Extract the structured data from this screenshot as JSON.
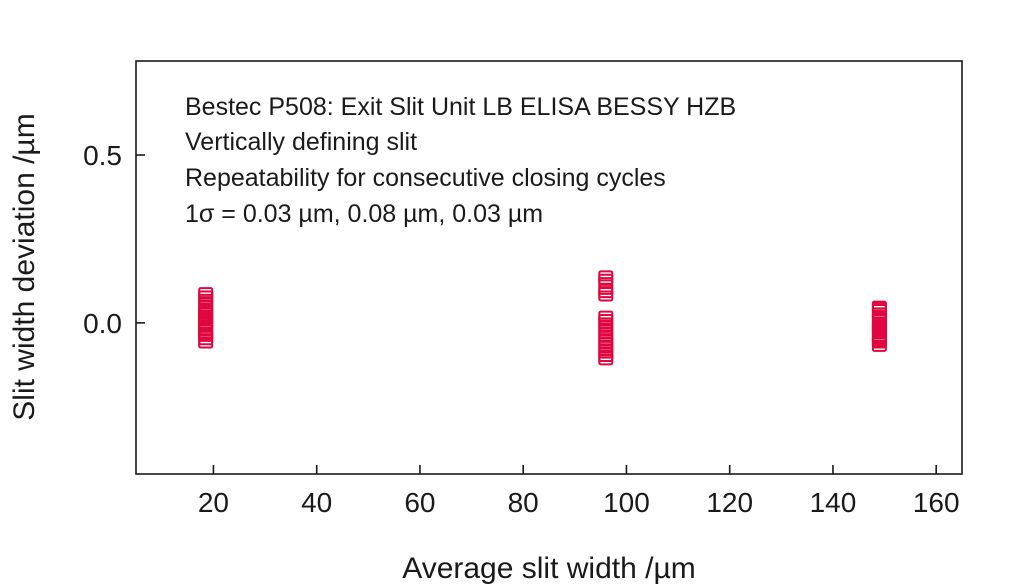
{
  "chart_data": {
    "type": "scatter",
    "title": "",
    "xlabel": "Average slit width /µm",
    "ylabel": "Slit width deviation /µm",
    "xlim": [
      5,
      165
    ],
    "ylim": [
      -0.45,
      0.78
    ],
    "xticks": [
      20,
      40,
      60,
      80,
      100,
      120,
      140,
      160
    ],
    "yticks": [
      0.0,
      0.5
    ],
    "ytick_labels": [
      "0.0",
      "0.5"
    ],
    "grid": false,
    "marker": "square",
    "marker_color": "#e0063f",
    "annotations": [
      "Bestec P508: Exit Slit Unit LB ELISA BESSY HZB",
      "Vertically defining slit",
      "Repeatability for consecutive closing cycles",
      "1σ = 0.03 µm, 0.08 µm, 0.03 µm"
    ],
    "series": [
      {
        "x": [
          18.5,
          18.5,
          18.5,
          18.5,
          18.5,
          18.5,
          18.5,
          18.5,
          18.5,
          18.5,
          18.5,
          18.5,
          18.5,
          18.5,
          18.5,
          18.5,
          18.5,
          18.5,
          18.5,
          18.5
        ],
        "y": [
          0.09,
          0.08,
          0.07,
          0.06,
          0.05,
          0.04,
          0.035,
          0.03,
          0.02,
          0.015,
          0.01,
          0.0,
          -0.005,
          -0.01,
          -0.02,
          -0.03,
          -0.035,
          -0.04,
          -0.05,
          -0.06
        ]
      },
      {
        "x": [
          96,
          96,
          96,
          96,
          96,
          96,
          96,
          96,
          96,
          96,
          96,
          96,
          96,
          96,
          96,
          96,
          96,
          96,
          96,
          96
        ],
        "y": [
          0.14,
          0.13,
          0.12,
          0.1,
          0.09,
          0.08,
          0.02,
          0.01,
          0.0,
          -0.01,
          -0.02,
          -0.03,
          -0.04,
          -0.05,
          -0.06,
          -0.07,
          -0.08,
          -0.09,
          -0.1,
          -0.11
        ]
      },
      {
        "x": [
          149,
          149,
          149,
          149,
          149,
          149,
          149,
          149,
          149,
          149,
          149,
          149,
          149,
          149,
          149,
          149,
          149,
          149,
          149,
          149
        ],
        "y": [
          0.05,
          0.045,
          0.04,
          0.03,
          0.02,
          0.015,
          0.01,
          0.0,
          -0.005,
          -0.01,
          -0.015,
          -0.02,
          -0.025,
          -0.03,
          -0.04,
          -0.045,
          -0.05,
          -0.055,
          -0.06,
          -0.07
        ]
      }
    ]
  }
}
